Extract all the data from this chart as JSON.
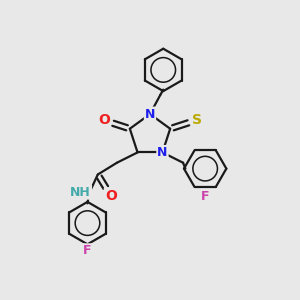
{
  "bg_color": "#e8e8e8",
  "bond_color": "#1a1a1a",
  "bond_width": 1.6,
  "N_color": "#2020ee",
  "O_color": "#ee2020",
  "S_color": "#bbaa00",
  "F_color": "#cc44aa",
  "H_color": "#44aaaa",
  "figsize": [
    3.0,
    3.0
  ],
  "dpi": 100,
  "xlim": [
    0,
    10
  ],
  "ylim": [
    0,
    10
  ]
}
